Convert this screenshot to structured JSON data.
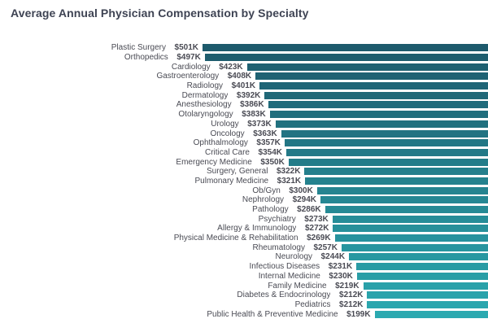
{
  "title": "Average Annual Physician Compensation by Specialty",
  "colors": {
    "background": "#ffffff",
    "title_text": "#3e4353",
    "label_text": "#4a4b54",
    "bar_color_top": "#1d5a6c",
    "bar_color_bottom": "#2ba9b0"
  },
  "chart_data": {
    "type": "bar",
    "orientation": "horizontal",
    "title": "Average Annual Physician Compensation by Specialty",
    "unit": "thousand USD per year",
    "categories": [
      "Plastic Surgery",
      "Orthopedics",
      "Cardiology",
      "Gastroenterology",
      "Radiology",
      "Dermatology",
      "Anesthesiology",
      "Otolaryngology",
      "Urology",
      "Oncology",
      "Ophthalmology",
      "Critical Care",
      "Emergency Medicine",
      "Surgery, General",
      "Pulmonary Medicine",
      "Ob/Gyn",
      "Nephrology",
      "Pathology",
      "Psychiatry",
      "Allergy & Immunology",
      "Physical Medicine & Rehabilitation",
      "Rheumatology",
      "Neurology",
      "Infectious Diseases",
      "Internal Medicine",
      "Family Medicine",
      "Diabetes & Endocrinology",
      "Pediatrics",
      "Public Health & Preventive Medicine"
    ],
    "values": [
      501,
      497,
      423,
      408,
      401,
      392,
      386,
      383,
      373,
      363,
      357,
      354,
      350,
      322,
      321,
      300,
      294,
      286,
      273,
      272,
      269,
      257,
      244,
      231,
      230,
      219,
      212,
      212,
      199
    ],
    "value_labels": [
      "$501K",
      "$497K",
      "$423K",
      "$408K",
      "$401K",
      "$392K",
      "$386K",
      "$383K",
      "$373K",
      "$363K",
      "$357K",
      "$354K",
      "$350K",
      "$322K",
      "$321K",
      "$300K",
      "$294K",
      "$286K",
      "$273K",
      "$272K",
      "$269K",
      "$257K",
      "$244K",
      "$231K",
      "$230K",
      "$219K",
      "$212K",
      "$212K",
      "$199K"
    ],
    "xlim": [
      0,
      501
    ],
    "grid": false,
    "legend": false,
    "bar_color_top": "#1d5a6c",
    "bar_color_bottom": "#2ba9b0"
  }
}
